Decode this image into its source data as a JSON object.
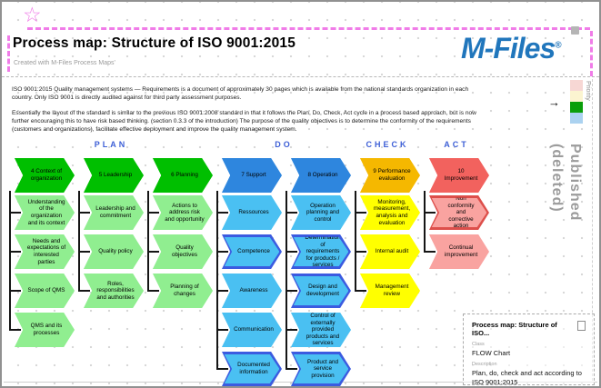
{
  "icons": {
    "star": "☆",
    "priority_arrow": "→"
  },
  "header": {
    "title": "Process map: Structure of ISO 9001:2015",
    "subtitle": "Created with M-Files Process Maps'",
    "logo_text": "M-Files",
    "logo_reg": "®"
  },
  "intro": {
    "paragraph1": "ISO 9001:2015 Quality management systems — Requirements is a document of approximately 30 pages which is available from the national standards organization in each country. Only ISO 9001 is directly audited against for third party assessment purposes.",
    "paragraph2": "Essentially the layout of the standard is similar to the previous ISO 9001:2008 standard in that it follows the Plan, Do, Check, Act cycle in a process based approach, but is now further encouraging this to have risk based thinking. (section 0.3.3 of the introduction) The purpose of the quality objectives is to determine the conformity of the requirements (customers and organizations), facilitate effective deployment and improve the quality management system."
  },
  "priority_legend": {
    "label": "Priority",
    "colors": [
      "#f7d7d4",
      "#fbf4d0",
      "#0a9e0a",
      "#abd2f0"
    ],
    "selected_index": 2
  },
  "watermark": "Published\n(deleted)",
  "flowchart": {
    "groups": [
      {
        "label": "PLAN"
      },
      {
        "label": "DO"
      },
      {
        "label": "CHECK"
      },
      {
        "label": "ACT"
      }
    ],
    "columns": [
      {
        "theme": {
          "header_fill": "#00bf00",
          "item_fill": "#90ee90"
        },
        "header": "4 Context of organization",
        "items": [
          {
            "label": "Understanding of the organization and its context"
          },
          {
            "label": "Needs and expectations of interested parties"
          },
          {
            "label": "Scope of QMS"
          },
          {
            "label": "QMS and its processes"
          }
        ]
      },
      {
        "theme": {
          "header_fill": "#00bf00",
          "item_fill": "#90ee90"
        },
        "header": "5 Leadership",
        "items": [
          {
            "label": "Leadership and commitment"
          },
          {
            "label": "Quality policy"
          },
          {
            "label": "Roles, responsibilities and authorities"
          }
        ]
      },
      {
        "theme": {
          "header_fill": "#00bf00",
          "item_fill": "#90ee90"
        },
        "header": "6 Planning",
        "items": [
          {
            "label": "Actions to address risk and opportunity"
          },
          {
            "label": "Quality objectives"
          },
          {
            "label": "Planning of changes"
          }
        ]
      },
      {
        "theme": {
          "header_fill": "#2e86de",
          "item_fill": "#4ac0f2",
          "accent_border": "#3b5be0"
        },
        "header": "7 Support",
        "items": [
          {
            "label": "Ressources"
          },
          {
            "label": "Competence",
            "accent": true
          },
          {
            "label": "Awareness"
          },
          {
            "label": "Communication"
          },
          {
            "label": "Documented information",
            "accent": true
          }
        ]
      },
      {
        "theme": {
          "header_fill": "#2e86de",
          "item_fill": "#4ac0f2",
          "accent_border": "#3b5be0"
        },
        "header": "8 Operation",
        "items": [
          {
            "label": "Operation planning and control"
          },
          {
            "label": "Determination of requirements for products / services",
            "accent": true
          },
          {
            "label": "Design and development",
            "accent": true
          },
          {
            "label": "Control of externally provided products and services"
          },
          {
            "label": "Product and service provision",
            "accent": true
          }
        ]
      },
      {
        "theme": {
          "header_fill": "#f5b800",
          "item_fill": "#ffff00"
        },
        "header": "9 Performance evaluation",
        "items": [
          {
            "label": "Monitoring, measurement, analysis and evaluation"
          },
          {
            "label": "Internal audit"
          },
          {
            "label": "Management review"
          }
        ]
      },
      {
        "theme": {
          "header_fill": "#f2625e",
          "item_fill": "#f9a3a0",
          "accent_border": "#dd4f4b"
        },
        "header": "10 Improvement",
        "items": [
          {
            "label": "Non conformity and corrective action",
            "accent": true
          },
          {
            "label": "Continual improvement"
          }
        ]
      }
    ]
  },
  "metadata_card": {
    "title": "Process map: Structure of ISO...",
    "class_label": "Class",
    "class_value": "FLOW Chart",
    "description_label": "Description",
    "description_value": "Plan, do, check and act according to ISO 9001:2015"
  }
}
